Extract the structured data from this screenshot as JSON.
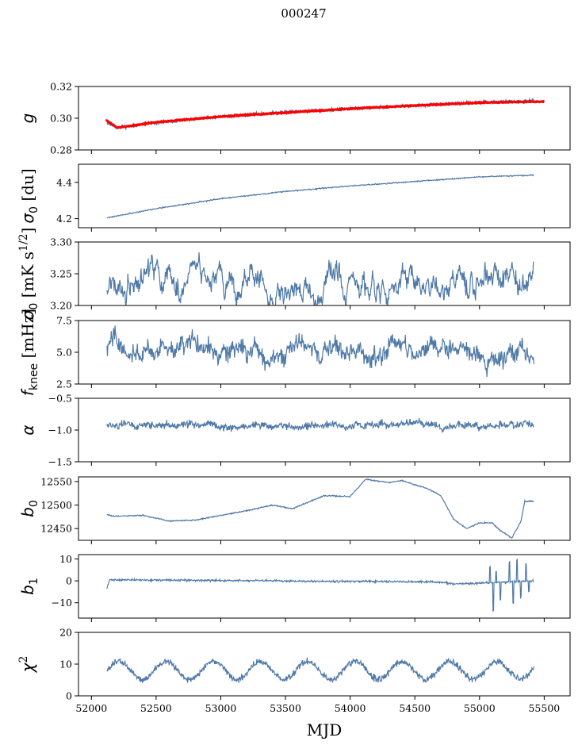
{
  "suptitle": "000247",
  "chart_data": {
    "type": "line",
    "shared_x": {
      "label": "MJD",
      "range": [
        51900,
        55700
      ],
      "ticks": [
        52000,
        52500,
        53000,
        53500,
        54000,
        54500,
        55000,
        55500
      ],
      "tick_labels": [
        "52000",
        "52500",
        "53000",
        "53500",
        "54000",
        "54500",
        "55000",
        "55500"
      ],
      "data_range": [
        52120,
        55420
      ]
    },
    "panels": [
      {
        "id": "g",
        "ylabel": "g",
        "ylabel_sub": "",
        "ylabel_sup": "",
        "ylabel_unit": "",
        "ylim": [
          0.28,
          0.32
        ],
        "yticks": [
          0.28,
          0.3,
          0.32
        ],
        "ytick_labels": [
          "0.28",
          "0.30",
          "0.32"
        ],
        "series": [
          {
            "name": "gain",
            "color": "#4f79a7",
            "knots": [
              [
                52120,
                0.297
              ],
              [
                52200,
                0.294
              ],
              [
                52500,
                0.297
              ],
              [
                53000,
                0.301
              ],
              [
                53500,
                0.304
              ],
              [
                54000,
                0.306
              ],
              [
                54500,
                0.308
              ],
              [
                55000,
                0.31
              ],
              [
                55420,
                0.311
              ]
            ],
            "noise": 0.001,
            "seed": 11
          },
          {
            "name": "gain-model",
            "color": "#ff0000",
            "knots": [
              [
                52110,
                0.299
              ],
              [
                52200,
                0.294
              ],
              [
                52500,
                0.2975
              ],
              [
                53000,
                0.301
              ],
              [
                53500,
                0.3035
              ],
              [
                54000,
                0.306
              ],
              [
                54500,
                0.308
              ],
              [
                55000,
                0.3098
              ],
              [
                55500,
                0.3105
              ]
            ],
            "noise": 0.0003,
            "seed": 12
          }
        ]
      },
      {
        "id": "sigma0",
        "ylabel": "σ",
        "ylabel_sub": "0",
        "ylabel_sup": "",
        "ylabel_unit": " [du]",
        "ylim": [
          4.15,
          4.5
        ],
        "yticks": [
          4.2,
          4.4
        ],
        "ytick_labels": [
          "4.2",
          "4.4"
        ],
        "series": [
          {
            "name": "sigma0",
            "color": "#4f79a7",
            "knots": [
              [
                52120,
                4.205
              ],
              [
                52500,
                4.255
              ],
              [
                53000,
                4.31
              ],
              [
                53500,
                4.35
              ],
              [
                54000,
                4.38
              ],
              [
                54500,
                4.405
              ],
              [
                55000,
                4.43
              ],
              [
                55420,
                4.44
              ]
            ],
            "noise": 0.003,
            "seed": 21
          }
        ]
      },
      {
        "id": "sigma0-phys",
        "ylabel": "σ",
        "ylabel_sub": "0",
        "ylabel_sup": "1/2",
        "ylabel_unit": " [mK s",
        "ylim": [
          3.2,
          3.3
        ],
        "yticks": [
          3.2,
          3.25,
          3.3
        ],
        "ytick_labels": [
          "3.20",
          "3.25",
          "3.30"
        ],
        "series": [
          {
            "name": "sigma0-mK",
            "color": "#4f79a7",
            "knots": [
              [
                52120,
                3.235
              ],
              [
                55420,
                3.235
              ]
            ],
            "noise": 0.009,
            "seed": 31,
            "wander": 0.008
          }
        ]
      },
      {
        "id": "fknee",
        "ylabel": "f",
        "ylabel_sub": "knee",
        "ylabel_sup": "",
        "ylabel_unit": " [mHz]",
        "ylim": [
          2.5,
          7.5
        ],
        "yticks": [
          2.5,
          5.0,
          7.5
        ],
        "ytick_labels": [
          "2.5",
          "5.0",
          "7.5"
        ],
        "series": [
          {
            "name": "fknee",
            "color": "#4f79a7",
            "knots": [
              [
                52120,
                5.3
              ],
              [
                55420,
                5.0
              ]
            ],
            "noise": 0.6,
            "seed": 41,
            "wander": 0.2
          }
        ]
      },
      {
        "id": "alpha",
        "ylabel": "α",
        "ylabel_sub": "",
        "ylabel_sup": "",
        "ylabel_unit": "",
        "ylim": [
          -1.5,
          -0.5
        ],
        "yticks": [
          -1.5,
          -1.0,
          -0.5
        ],
        "ytick_labels": [
          "−1.5",
          "−1.0",
          "−0.5"
        ],
        "series": [
          {
            "name": "alpha",
            "color": "#4f79a7",
            "knots": [
              [
                52120,
                -0.93
              ],
              [
                55420,
                -0.93
              ]
            ],
            "noise": 0.05,
            "seed": 51,
            "wander": 0.01
          }
        ]
      },
      {
        "id": "b0",
        "ylabel": "b",
        "ylabel_sub": "0",
        "ylabel_sup": "",
        "ylabel_unit": "",
        "ylim": [
          12425,
          12560
        ],
        "yticks": [
          12450,
          12500,
          12550
        ],
        "ytick_labels": [
          "12450",
          "12500",
          "12550"
        ],
        "series": [
          {
            "name": "b0",
            "color": "#4f79a7",
            "knots": [
              [
                52120,
                12480
              ],
              [
                52170,
                12476
              ],
              [
                52400,
                12478
              ],
              [
                52600,
                12466
              ],
              [
                52800,
                12468
              ],
              [
                53000,
                12478
              ],
              [
                53200,
                12488
              ],
              [
                53400,
                12500
              ],
              [
                53550,
                12492
              ],
              [
                53800,
                12520
              ],
              [
                54000,
                12518
              ],
              [
                54120,
                12555
              ],
              [
                54300,
                12548
              ],
              [
                54400,
                12552
              ],
              [
                54600,
                12535
              ],
              [
                54700,
                12520
              ],
              [
                54800,
                12470
              ],
              [
                54900,
                12450
              ],
              [
                55000,
                12462
              ],
              [
                55100,
                12462
              ],
              [
                55150,
                12448
              ],
              [
                55250,
                12430
              ],
              [
                55320,
                12465
              ],
              [
                55350,
                12508
              ],
              [
                55420,
                12508
              ]
            ],
            "noise": 1.2,
            "seed": 61
          }
        ]
      },
      {
        "id": "b1",
        "ylabel": "b",
        "ylabel_sub": "1",
        "ylabel_sup": "",
        "ylabel_unit": "",
        "ylim": [
          -17,
          12
        ],
        "yticks": [
          -10,
          0,
          10
        ],
        "ytick_labels": [
          "−10",
          "0",
          "10"
        ],
        "series": [
          {
            "name": "b1",
            "color": "#4f79a7",
            "knots": [
              [
                52120,
                -3.5
              ],
              [
                52140,
                0.5
              ],
              [
                54700,
                -0.5
              ],
              [
                54800,
                -1.5
              ],
              [
                55420,
                0.0
              ]
            ],
            "noise": 0.45,
            "seed": 71,
            "spikes": [
              [
                55080,
                7
              ],
              [
                55105,
                -13
              ],
              [
                55130,
                5
              ],
              [
                55160,
                -8
              ],
              [
                55230,
                9
              ],
              [
                55260,
                -10
              ],
              [
                55290,
                10
              ],
              [
                55320,
                -7
              ],
              [
                55360,
                8
              ],
              [
                55380,
                -5
              ]
            ]
          }
        ]
      },
      {
        "id": "chi2",
        "ylabel": "χ",
        "ylabel_sub": "",
        "ylabel_sup": "2",
        "ylabel_unit": "",
        "ylim": [
          0,
          20
        ],
        "yticks": [
          0,
          10,
          20
        ],
        "ytick_labels": [
          "0",
          "10",
          "20"
        ],
        "series": [
          {
            "name": "chi2",
            "color": "#4f79a7",
            "knots": [
              [
                52120,
                8
              ],
              [
                55420,
                8
              ]
            ],
            "noise": 1.0,
            "seed": 81,
            "seasonal": {
              "amp": 2.8,
              "period": 365.25,
              "phase": 52120
            }
          }
        ]
      }
    ]
  }
}
